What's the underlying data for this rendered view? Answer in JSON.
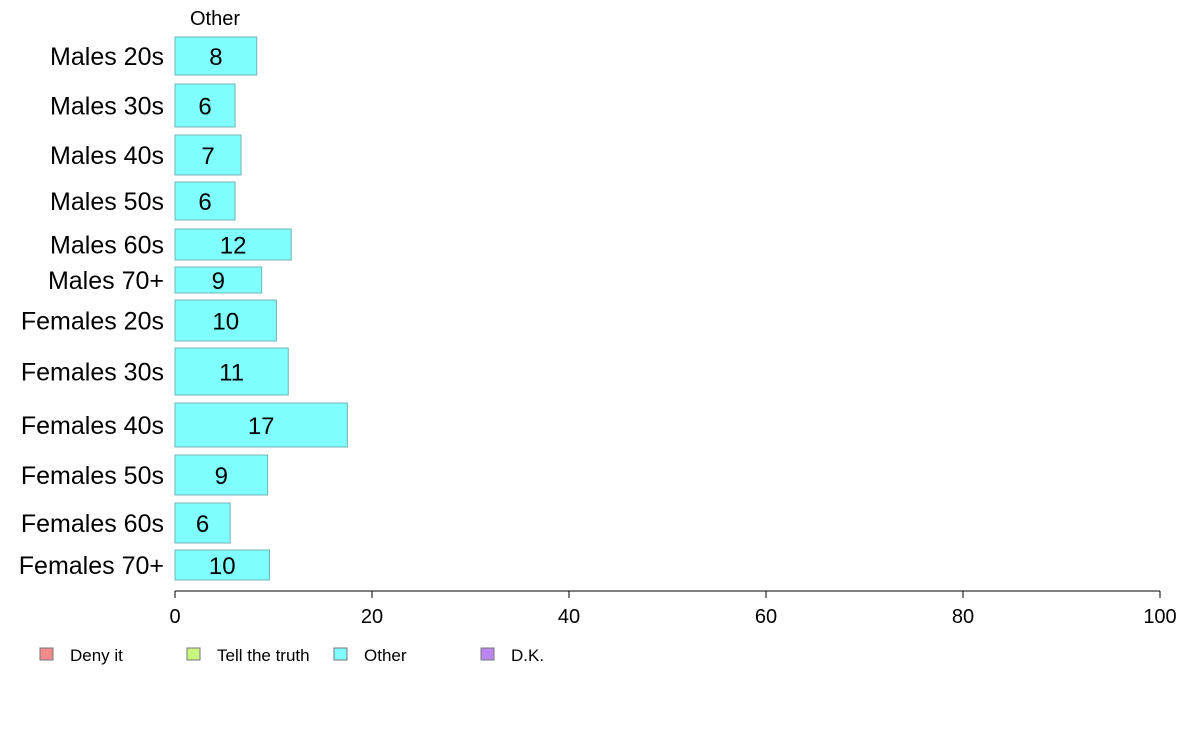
{
  "chart_data": {
    "type": "bar",
    "orientation": "horizontal",
    "stacked": true,
    "panel_label": "Other",
    "categories": [
      "Males 20s",
      "Males 30s",
      "Males 40s",
      "Males 50s",
      "Males 60s",
      "Males 70+",
      "Females 20s",
      "Females 30s",
      "Females 40s",
      "Females 50s",
      "Females 60s",
      "Females 70+"
    ],
    "series": [
      {
        "name": "Other",
        "color": "#80ffff",
        "values": [
          8.3,
          6.1,
          6.7,
          6.1,
          11.8,
          8.8,
          10.3,
          11.5,
          17.5,
          9.4,
          5.6,
          9.6
        ],
        "labels": [
          "8",
          "6",
          "7",
          "6",
          "12",
          "9",
          "10",
          "11",
          "17",
          "9",
          "6",
          "10"
        ]
      }
    ],
    "xlim": [
      0,
      100
    ],
    "xticks": [
      "0",
      "20",
      "40",
      "60",
      "80",
      "100"
    ],
    "xlabel": "",
    "ylabel": "",
    "legend": {
      "position": "bottom",
      "items": [
        {
          "label": "Deny it",
          "color": "#f28b8b"
        },
        {
          "label": "Tell the truth",
          "color": "#c8f580"
        },
        {
          "label": "Other",
          "color": "#80ffff"
        },
        {
          "label": "D.K.",
          "color": "#bb86f2"
        }
      ]
    }
  }
}
